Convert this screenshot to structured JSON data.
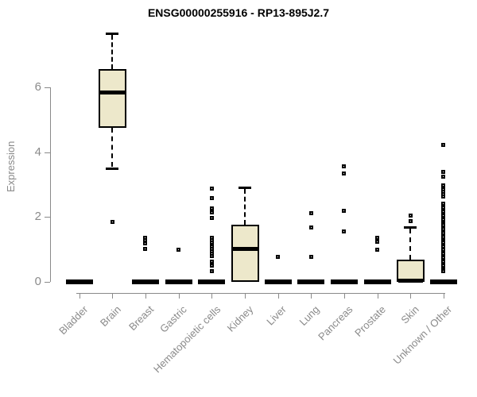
{
  "colors": {
    "box_fill": "#EDE8CB",
    "box_line": "#000000",
    "axis": "#8a8a8a",
    "title_text": "#000000"
  },
  "chart_data": {
    "type": "boxplot",
    "title": "ENSG00000255916 - RP13-895J2.7",
    "xlabel": "",
    "ylabel": "Expression",
    "yticks": [
      0,
      2,
      4,
      6
    ],
    "ylim": [
      0,
      7.8
    ],
    "grid": false,
    "legend": "none",
    "categories": [
      "Bladder",
      "Brain",
      "Breast",
      "Gastric",
      "Hematopoietic cells",
      "Kidney",
      "Liver",
      "Lung",
      "Pancreas",
      "Prostate",
      "Skin",
      "Unknown / Other"
    ],
    "series": [
      {
        "name": "Bladder",
        "q1": 0,
        "median": 0,
        "q3": 0,
        "whisker_low": 0,
        "whisker_high": 0,
        "outliers": []
      },
      {
        "name": "Brain",
        "q1": 4.75,
        "median": 5.85,
        "q3": 6.57,
        "whisker_low": 3.5,
        "whisker_high": 7.65,
        "outliers": [
          1.85
        ]
      },
      {
        "name": "Breast",
        "q1": 0,
        "median": 0,
        "q3": 0,
        "whisker_low": 0,
        "whisker_high": 0,
        "outliers": [
          1.37,
          1.29,
          1.19,
          1.01
        ]
      },
      {
        "name": "Gastric",
        "q1": 0,
        "median": 0,
        "q3": 0,
        "whisker_low": 0,
        "whisker_high": 0,
        "outliers": [
          1.0
        ]
      },
      {
        "name": "Hematopoietic cells",
        "q1": 0,
        "median": 0,
        "q3": 0,
        "whisker_low": 0,
        "whisker_high": 0,
        "outliers": [
          2.88,
          2.58,
          2.27,
          2.13,
          1.97,
          1.35,
          1.28,
          1.22,
          1.1,
          1.02,
          0.95,
          0.88,
          0.8,
          0.62,
          0.5,
          0.33
        ]
      },
      {
        "name": "Kidney",
        "q1": 0,
        "median": 1.02,
        "q3": 1.76,
        "whisker_low": 0,
        "whisker_high": 2.92,
        "outliers": []
      },
      {
        "name": "Liver",
        "q1": 0,
        "median": 0,
        "q3": 0,
        "whisker_low": 0,
        "whisker_high": 0,
        "outliers": [
          0.78
        ]
      },
      {
        "name": "Lung",
        "q1": 0,
        "median": 0,
        "q3": 0,
        "whisker_low": 0,
        "whisker_high": 0,
        "outliers": [
          2.12,
          1.67,
          0.76
        ]
      },
      {
        "name": "Pancreas",
        "q1": 0,
        "median": 0,
        "q3": 0,
        "whisker_low": 0,
        "whisker_high": 0,
        "outliers": [
          3.55,
          3.35,
          2.2,
          1.55
        ]
      },
      {
        "name": "Prostate",
        "q1": 0,
        "median": 0,
        "q3": 0,
        "whisker_low": 0,
        "whisker_high": 0,
        "outliers": [
          1.35,
          1.23,
          0.98
        ]
      },
      {
        "name": "Skin",
        "q1": 0,
        "median": 0,
        "q3": 0.69,
        "whisker_low": 0,
        "whisker_high": 1.7,
        "outliers": [
          2.04,
          1.88
        ]
      },
      {
        "name": "Unknown / Other",
        "q1": 0,
        "median": 0,
        "q3": 0,
        "whisker_low": 0,
        "whisker_high": 0,
        "outliers": [
          4.22,
          3.39,
          3.24,
          2.98,
          2.91,
          2.84,
          2.77,
          2.7,
          2.63,
          2.4,
          2.34,
          2.28,
          2.22,
          2.16,
          2.1,
          2.04,
          1.98,
          1.92,
          1.86,
          1.8,
          1.74,
          1.68,
          1.62,
          1.56,
          1.5,
          1.44,
          1.38,
          1.32,
          1.26,
          1.2,
          1.14,
          1.08,
          0.98,
          0.92,
          0.86,
          0.8,
          0.74,
          0.68,
          0.62,
          0.56,
          0.5,
          0.44,
          0.38,
          0.32
        ]
      }
    ]
  }
}
